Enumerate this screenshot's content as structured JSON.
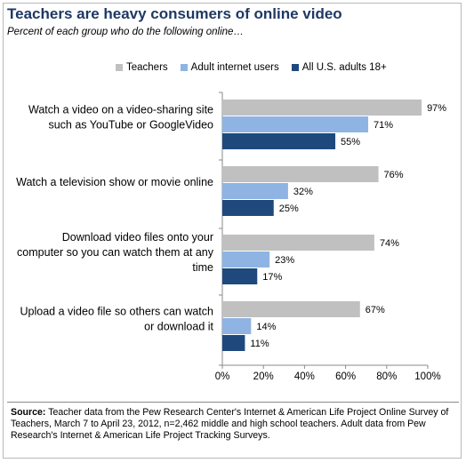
{
  "title": "Teachers are heavy consumers of online video",
  "subtitle": "Percent of each group who do the following online…",
  "source_label": "Source:",
  "source_text": "Teacher data from the Pew Research Center's Internet & American Life Project Online Survey of Teachers, March 7 to April 23, 2012, n=2,462 middle and high school teachers.  Adult data from Pew Research's Internet & American Life Project Tracking Surveys.",
  "colors": {
    "title": "#1f3864",
    "teachers": "#c0c0c0",
    "adults_internet": "#8fb4e3",
    "all_adults": "#1f497d",
    "grid": "#d0d0d0"
  },
  "chart_data": {
    "type": "bar",
    "orientation": "horizontal",
    "categories": [
      [
        "Watch a video on a video-sharing site",
        "such as YouTube or GoogleVideo"
      ],
      [
        "Watch a television show or movie online"
      ],
      [
        "Download video files onto your",
        "computer so you can watch them at any",
        "time"
      ],
      [
        "Upload a video file so others can watch",
        "or download it"
      ]
    ],
    "series": [
      {
        "name": "Teachers",
        "color": "#c0c0c0",
        "values": [
          97,
          76,
          74,
          67
        ]
      },
      {
        "name": "Adult internet users",
        "color": "#8fb4e3",
        "values": [
          71,
          32,
          23,
          14
        ]
      },
      {
        "name": "All U.S. adults 18+",
        "color": "#1f497d",
        "values": [
          55,
          25,
          17,
          11
        ]
      }
    ],
    "value_suffix": "%",
    "xlim": [
      0,
      100
    ],
    "xticks": [
      "0%",
      "20%",
      "40%",
      "60%",
      "80%",
      "100%"
    ],
    "grid": false,
    "legend": "top"
  }
}
